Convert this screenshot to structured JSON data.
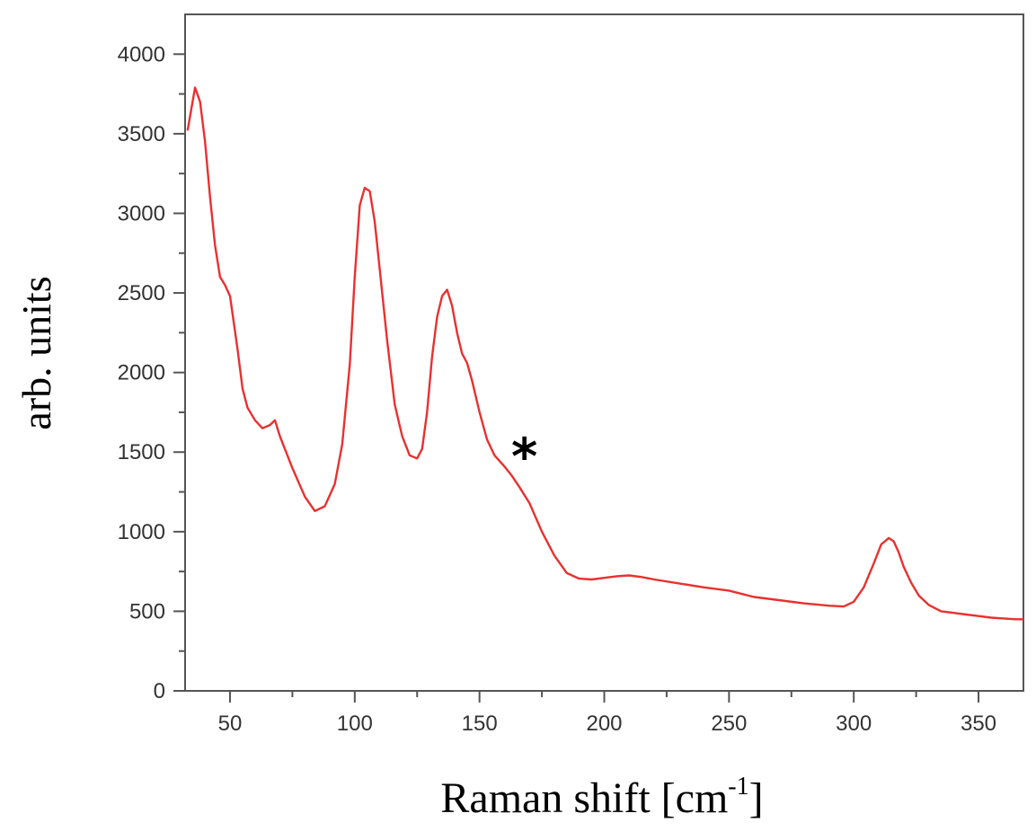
{
  "chart_data": {
    "type": "line",
    "xlabel": "Raman shift [cm",
    "xlabel_sup": "-1",
    "xlabel_close": "]",
    "ylabel": "arb. units",
    "xlim": [
      32,
      368
    ],
    "ylim": [
      0,
      4250
    ],
    "x_ticks": [
      50,
      100,
      150,
      200,
      250,
      300,
      350
    ],
    "y_ticks": [
      0,
      500,
      1000,
      1500,
      2000,
      2500,
      3000,
      3500,
      4000
    ],
    "annotation": {
      "text": "*",
      "x": 168,
      "y": 1520
    },
    "grid": false,
    "series": [
      {
        "color": "#e8312f",
        "x": [
          33,
          35,
          36,
          38,
          40,
          42,
          44,
          46,
          48,
          50,
          53,
          55,
          57,
          60,
          63,
          66,
          68,
          70,
          75,
          80,
          84,
          88,
          92,
          95,
          98,
          100,
          102,
          104,
          106,
          108,
          110,
          113,
          116,
          119,
          122,
          125,
          127,
          129,
          131,
          133,
          135,
          137,
          139,
          141,
          143,
          145,
          147,
          150,
          153,
          156,
          160,
          163,
          166,
          170,
          175,
          180,
          185,
          190,
          195,
          200,
          205,
          210,
          215,
          220,
          230,
          240,
          250,
          260,
          270,
          280,
          290,
          296,
          300,
          304,
          308,
          311,
          314,
          316,
          318,
          320,
          323,
          326,
          330,
          335,
          340,
          345,
          350,
          355,
          360,
          365,
          368
        ],
        "y": [
          3520,
          3700,
          3790,
          3700,
          3450,
          3100,
          2800,
          2600,
          2550,
          2480,
          2150,
          1900,
          1780,
          1700,
          1650,
          1670,
          1700,
          1600,
          1400,
          1220,
          1130,
          1160,
          1300,
          1550,
          2050,
          2600,
          3050,
          3160,
          3140,
          2950,
          2650,
          2200,
          1800,
          1600,
          1480,
          1460,
          1520,
          1750,
          2100,
          2350,
          2480,
          2520,
          2420,
          2250,
          2120,
          2060,
          1950,
          1750,
          1580,
          1480,
          1410,
          1350,
          1280,
          1180,
          1000,
          850,
          740,
          705,
          700,
          710,
          720,
          725,
          715,
          700,
          675,
          650,
          630,
          590,
          570,
          550,
          535,
          530,
          560,
          650,
          800,
          920,
          960,
          940,
          870,
          780,
          680,
          600,
          540,
          500,
          490,
          480,
          470,
          460,
          455,
          450,
          450
        ]
      }
    ]
  }
}
